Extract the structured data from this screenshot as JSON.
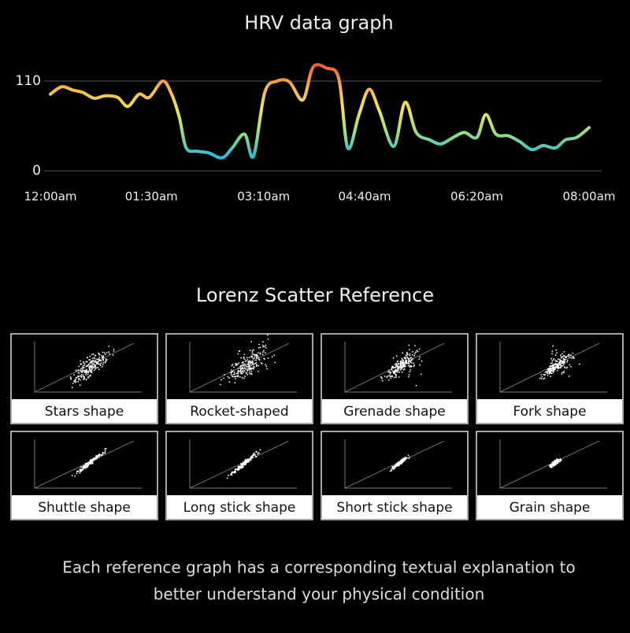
{
  "chart_data": {
    "type": "line",
    "title": "HRV data graph",
    "x": [
      0,
      10,
      20,
      29,
      39,
      49,
      60,
      69,
      79,
      88,
      100,
      108,
      115,
      121,
      131,
      141,
      153,
      162,
      173,
      181,
      191,
      202,
      213,
      225,
      234,
      246,
      257,
      265,
      275,
      284,
      293,
      306,
      316,
      326,
      338,
      348,
      359,
      369,
      380,
      388,
      397,
      408,
      418,
      429,
      439,
      450,
      459,
      469,
      480
    ],
    "values": [
      94,
      103,
      99,
      96,
      89,
      92,
      90,
      79,
      94,
      90,
      110,
      94,
      65,
      28,
      24,
      22,
      16,
      28,
      45,
      18,
      96,
      110,
      109,
      87,
      127,
      126,
      113,
      28,
      69,
      100,
      74,
      30,
      84,
      47,
      38,
      33,
      41,
      47,
      41,
      69,
      45,
      43,
      36,
      26,
      31,
      28,
      38,
      41,
      53
    ],
    "xlim": [
      0,
      480
    ],
    "xticks": [
      {
        "value": 0,
        "label": "12:00am"
      },
      {
        "value": 90,
        "label": "01:30am"
      },
      {
        "value": 190,
        "label": "03:10am"
      },
      {
        "value": 280,
        "label": "04:40am"
      },
      {
        "value": 380,
        "label": "06:20am"
      },
      {
        "value": 480,
        "label": "08:00am"
      }
    ],
    "ylim": [
      0,
      130
    ],
    "yticks": [
      0,
      110
    ],
    "grid": true,
    "colors": [
      "#2fc0d8",
      "#9fe07a",
      "#f2e25a",
      "#f5b648",
      "#f2622e"
    ]
  },
  "lorenz": {
    "title": "Lorenz Scatter Reference",
    "cards": [
      {
        "label": "Stars shape"
      },
      {
        "label": "Rocket-shaped"
      },
      {
        "label": "Grenade shape"
      },
      {
        "label": "Fork shape"
      },
      {
        "label": "Shuttle shape"
      },
      {
        "label": "Long stick shape"
      },
      {
        "label": "Short stick shape"
      },
      {
        "label": "Grain shape"
      }
    ]
  },
  "footer": {
    "lines": [
      "Each reference graph has a corresponding textual explanation to",
      "better understand your physical condition"
    ]
  }
}
